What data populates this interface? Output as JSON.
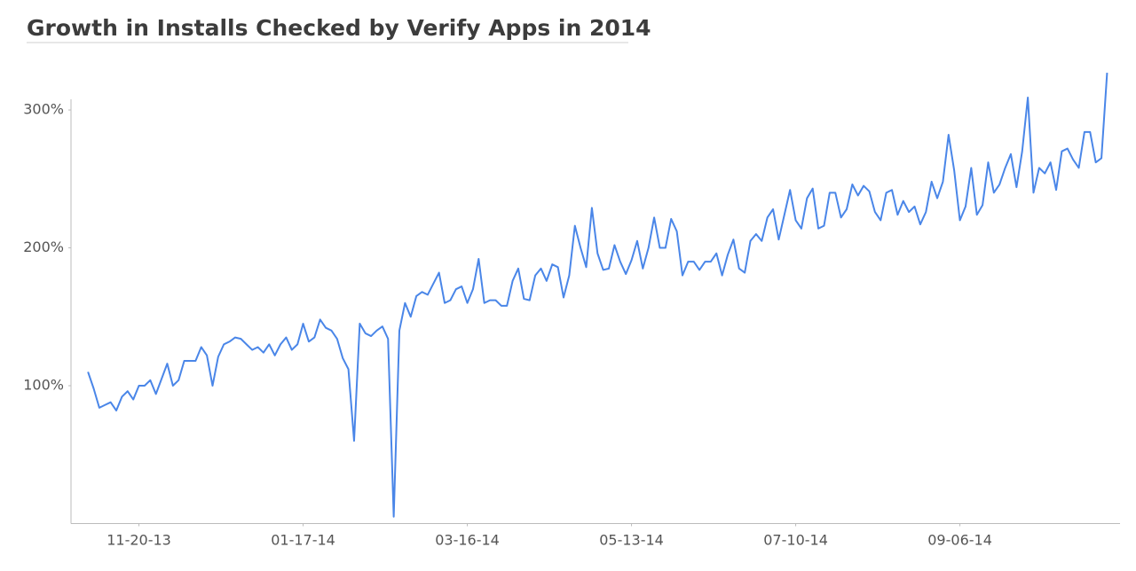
{
  "chart_data": {
    "type": "line",
    "title": "Growth in Installs Checked by Verify Apps in 2014",
    "color": "#4a86e8",
    "x": [
      "11-02-13",
      "11-04-13",
      "11-06-13",
      "11-08-13",
      "11-10-13",
      "11-12-13",
      "11-14-13",
      "11-16-13",
      "11-18-13",
      "11-20-13",
      "11-22-13",
      "11-24-13",
      "11-26-13",
      "11-28-13",
      "11-30-13",
      "12-02-13",
      "12-04-13",
      "12-06-13",
      "12-08-13",
      "12-10-13",
      "12-12-13",
      "12-14-13",
      "12-16-13",
      "12-18-13",
      "12-20-13",
      "12-22-13",
      "12-24-13",
      "12-26-13",
      "12-28-13",
      "12-30-13",
      "01-01-14",
      "01-03-14",
      "01-05-14",
      "01-07-14",
      "01-09-14",
      "01-11-14",
      "01-13-14",
      "01-15-14",
      "01-17-14",
      "01-19-14",
      "01-21-14",
      "01-23-14",
      "01-25-14",
      "01-27-14",
      "01-29-14",
      "01-31-14",
      "02-02-14",
      "02-04-14",
      "02-06-14",
      "02-08-14",
      "02-10-14",
      "02-12-14",
      "02-14-14",
      "02-16-14",
      "02-18-14",
      "02-20-14",
      "02-22-14",
      "02-24-14",
      "02-26-14",
      "02-28-14",
      "03-02-14",
      "03-04-14",
      "03-06-14",
      "03-08-14",
      "03-10-14",
      "03-12-14",
      "03-14-14",
      "03-16-14",
      "03-18-14",
      "03-20-14",
      "03-22-14",
      "03-24-14",
      "03-26-14",
      "03-28-14",
      "03-30-14",
      "04-01-14",
      "04-03-14",
      "04-05-14",
      "04-07-14",
      "04-09-14",
      "04-11-14",
      "04-13-14",
      "04-15-14",
      "04-17-14",
      "04-19-14",
      "04-21-14",
      "04-23-14",
      "04-25-14",
      "04-27-14",
      "04-29-14",
      "05-01-14",
      "05-03-14",
      "05-05-14",
      "05-07-14",
      "05-09-14",
      "05-11-14",
      "05-13-14",
      "05-15-14",
      "05-17-14",
      "05-19-14",
      "05-21-14",
      "05-23-14",
      "05-25-14",
      "05-27-14",
      "05-29-14",
      "05-31-14",
      "06-02-14",
      "06-04-14",
      "06-06-14",
      "06-08-14",
      "06-10-14",
      "06-12-14",
      "06-14-14",
      "06-16-14",
      "06-18-14",
      "06-20-14",
      "06-22-14",
      "06-24-14",
      "06-26-14",
      "06-28-14",
      "06-30-14",
      "07-02-14",
      "07-04-14",
      "07-06-14",
      "07-08-14",
      "07-10-14",
      "07-12-14",
      "07-14-14",
      "07-16-14",
      "07-18-14",
      "07-20-14",
      "07-22-14",
      "07-24-14",
      "07-26-14",
      "07-28-14",
      "07-30-14",
      "08-01-14",
      "08-03-14",
      "08-05-14",
      "08-07-14",
      "08-09-14",
      "08-11-14",
      "08-13-14",
      "08-15-14",
      "08-17-14",
      "08-19-14",
      "08-21-14",
      "08-23-14",
      "08-25-14",
      "08-27-14",
      "08-29-14",
      "08-31-14",
      "09-02-14",
      "09-04-14",
      "09-06-14",
      "09-08-14",
      "09-10-14",
      "09-12-14",
      "09-14-14",
      "09-16-14",
      "09-18-14",
      "09-20-14",
      "09-22-14",
      "09-24-14",
      "09-26-14",
      "09-28-14",
      "09-30-14",
      "10-02-14",
      "10-04-14",
      "10-06-14",
      "10-08-14",
      "10-10-14",
      "10-12-14",
      "10-14-14",
      "10-16-14",
      "10-18-14",
      "10-20-14",
      "10-22-14",
      "10-24-14",
      "10-26-14",
      "10-28-14"
    ],
    "values": [
      110,
      98,
      84,
      86,
      88,
      82,
      92,
      96,
      90,
      100,
      100,
      104,
      94,
      105,
      116,
      100,
      104,
      118,
      118,
      118,
      128,
      122,
      100,
      121,
      130,
      132,
      135,
      134,
      130,
      126,
      128,
      124,
      130,
      122,
      130,
      135,
      126,
      130,
      145,
      132,
      135,
      148,
      142,
      140,
      134,
      120,
      112,
      60,
      145,
      138,
      136,
      140,
      143,
      134,
      5,
      140,
      160,
      150,
      165,
      168,
      166,
      174,
      182,
      160,
      162,
      170,
      172,
      160,
      170,
      192,
      160,
      162,
      162,
      158,
      158,
      176,
      185,
      163,
      162,
      180,
      185,
      176,
      188,
      186,
      164,
      180,
      216,
      200,
      186,
      229,
      196,
      184,
      185,
      202,
      190,
      181,
      191,
      205,
      185,
      200,
      222,
      200,
      200,
      221,
      212,
      180,
      190,
      190,
      184,
      190,
      190,
      196,
      180,
      195,
      206,
      185,
      182,
      205,
      210,
      205,
      222,
      228,
      206,
      224,
      242,
      220,
      214,
      236,
      243,
      214,
      216,
      240,
      240,
      222,
      228,
      246,
      238,
      245,
      241,
      226,
      220,
      240,
      242,
      224,
      234,
      226,
      230,
      217,
      226,
      248,
      236,
      248,
      282,
      256,
      220,
      230,
      258,
      224,
      231,
      262,
      240,
      246,
      258,
      268,
      244,
      270,
      309,
      240,
      258,
      254,
      262,
      242,
      270,
      272,
      264,
      258,
      284,
      284,
      262,
      265,
      327
    ],
    "xlim": [
      "10-27-13",
      "10-31-14"
    ],
    "xticks": [
      "11-20-13",
      "01-17-14",
      "03-16-14",
      "05-13-14",
      "07-10-14",
      "09-06-14"
    ],
    "ylim": [
      0,
      310
    ],
    "yticks": [
      {
        "value": 100,
        "label": "100%"
      },
      {
        "value": 200,
        "label": "200%"
      },
      {
        "value": 300,
        "label": "300%"
      }
    ],
    "grid": false
  }
}
